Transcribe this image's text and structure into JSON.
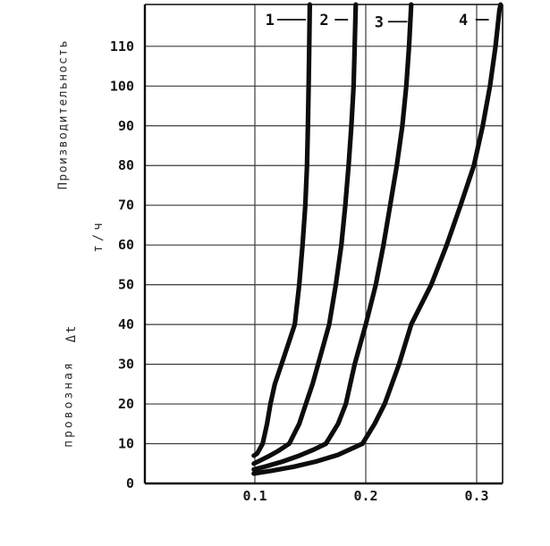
{
  "figure": {
    "background_color": "#ffffff",
    "ink_color": "#0d0d0d",
    "grid_color": "#3c3c3c",
    "y_axis_label_main": "Производительность",
    "y_axis_label_unit": "т/ч",
    "y_axis_label_var": "Δt",
    "y_axis_label_secondary": "провозная"
  },
  "chart_data": {
    "type": "line",
    "title": "",
    "xlabel": "",
    "ylabel": "Производительность, т/ч",
    "ylabel_secondary": "провозная Δt",
    "xlim": [
      0,
      0.324
    ],
    "ylim": [
      0,
      120.5
    ],
    "grid": true,
    "legend_position": "curve numbers 1-4 annotated inside plot at top",
    "x_ticks": [
      {
        "value": 0.1,
        "label": "0.1"
      },
      {
        "value": 0.2,
        "label": "0.2"
      },
      {
        "value": 0.3,
        "label": "0.3"
      }
    ],
    "y_ticks": [
      0,
      10,
      20,
      30,
      40,
      50,
      60,
      70,
      80,
      90,
      100,
      110
    ],
    "series": [
      {
        "name": "1",
        "points": [
          [
            0.099,
            7
          ],
          [
            0.102,
            7.5
          ],
          [
            0.105,
            9
          ],
          [
            0.107,
            10
          ],
          [
            0.111,
            15
          ],
          [
            0.114,
            20
          ],
          [
            0.118,
            25
          ],
          [
            0.124,
            30
          ],
          [
            0.13,
            35
          ],
          [
            0.136,
            40
          ],
          [
            0.14,
            50
          ],
          [
            0.143,
            60
          ],
          [
            0.1455,
            70
          ],
          [
            0.147,
            80
          ],
          [
            0.1478,
            90
          ],
          [
            0.1485,
            100
          ],
          [
            0.149,
            110
          ],
          [
            0.1495,
            120.5
          ]
        ]
      },
      {
        "name": "2",
        "points": [
          [
            0.099,
            5
          ],
          [
            0.105,
            5.8
          ],
          [
            0.112,
            6.8
          ],
          [
            0.12,
            8
          ],
          [
            0.131,
            10
          ],
          [
            0.14,
            15
          ],
          [
            0.146,
            20
          ],
          [
            0.152,
            25
          ],
          [
            0.157,
            30
          ],
          [
            0.167,
            40
          ],
          [
            0.173,
            50
          ],
          [
            0.178,
            60
          ],
          [
            0.1815,
            70
          ],
          [
            0.1845,
            80
          ],
          [
            0.187,
            90
          ],
          [
            0.189,
            100
          ],
          [
            0.19,
            110
          ],
          [
            0.191,
            120.5
          ]
        ]
      },
      {
        "name": "3",
        "points": [
          [
            0.099,
            3.5
          ],
          [
            0.11,
            4.3
          ],
          [
            0.125,
            5.5
          ],
          [
            0.14,
            7
          ],
          [
            0.153,
            8.5
          ],
          [
            0.164,
            10
          ],
          [
            0.175,
            15
          ],
          [
            0.182,
            20
          ],
          [
            0.19,
            30
          ],
          [
            0.2,
            40
          ],
          [
            0.209,
            50
          ],
          [
            0.216,
            60
          ],
          [
            0.222,
            70
          ],
          [
            0.228,
            80
          ],
          [
            0.233,
            90
          ],
          [
            0.2365,
            100
          ],
          [
            0.239,
            110
          ],
          [
            0.241,
            120.5
          ]
        ]
      },
      {
        "name": "4",
        "points": [
          [
            0.099,
            2.5
          ],
          [
            0.115,
            3.2
          ],
          [
            0.135,
            4.2
          ],
          [
            0.155,
            5.5
          ],
          [
            0.175,
            7.2
          ],
          [
            0.197,
            10
          ],
          [
            0.208,
            15
          ],
          [
            0.217,
            20
          ],
          [
            0.23,
            30
          ],
          [
            0.241,
            40
          ],
          [
            0.259,
            50
          ],
          [
            0.273,
            60
          ],
          [
            0.2855,
            70
          ],
          [
            0.2975,
            80
          ],
          [
            0.3055,
            90
          ],
          [
            0.312,
            100
          ],
          [
            0.317,
            110
          ],
          [
            0.3205,
            119
          ],
          [
            0.3215,
            120.5
          ]
        ]
      }
    ],
    "curve_labels": [
      {
        "text": "1",
        "x": 0.1135,
        "y": 116.7,
        "dash_from": 0.12,
        "dash_to": 0.146
      },
      {
        "text": "2",
        "x": 0.1625,
        "y": 116.7,
        "dash_from": 0.172,
        "dash_to": 0.184
      },
      {
        "text": "3",
        "x": 0.212,
        "y": 116.2,
        "dash_from": 0.22,
        "dash_to": 0.2375
      },
      {
        "text": "4",
        "x": 0.288,
        "y": 116.7,
        "dash_from": 0.299,
        "dash_to": 0.311
      }
    ]
  }
}
